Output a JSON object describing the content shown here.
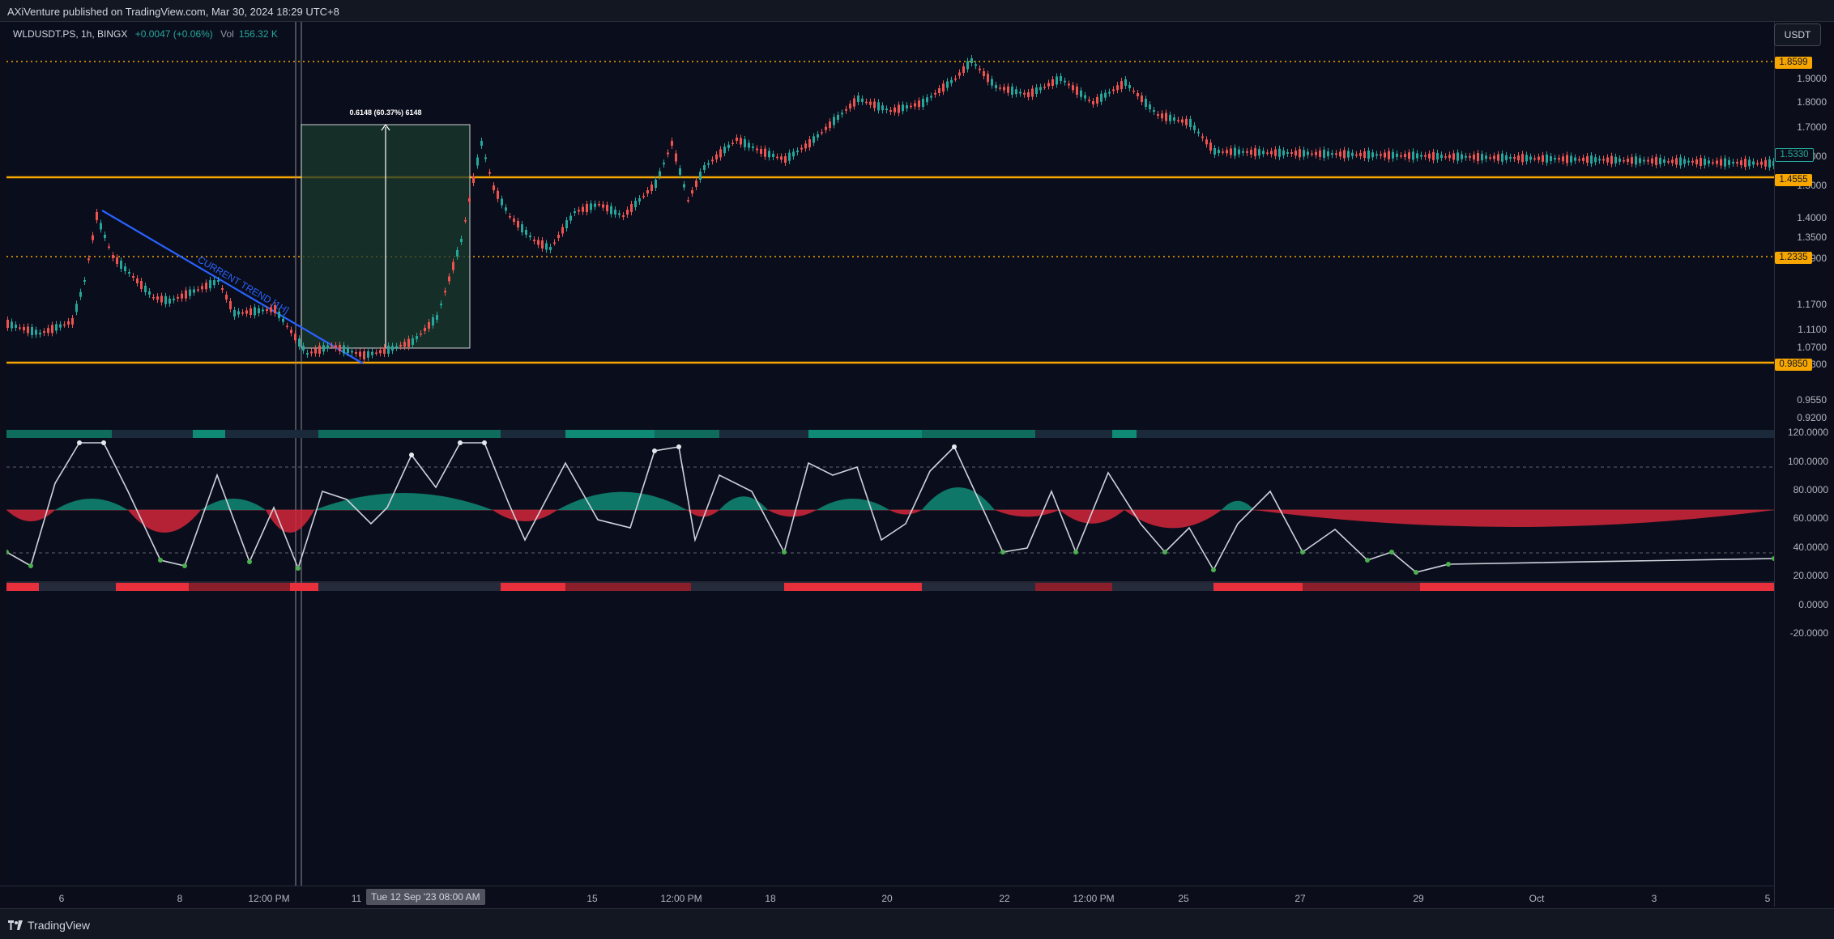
{
  "header": {
    "publisher_text": "AXiVenture published on TradingView.com, Mar 30, 2024 18:29 UTC+8"
  },
  "legend": {
    "symbol": "WLDUSDT.PS, 1h, BINGX",
    "change": "+0.0047 (+0.06%)",
    "vol_label": "Vol",
    "vol_value": "156.32 K"
  },
  "currency": "USDT",
  "price_scale": {
    "ticks": [
      "1.9000",
      "1.8000",
      "1.7000",
      "1.6000",
      "1.5000",
      "1.4000",
      "1.3500",
      "1.2900",
      "1.1700",
      "1.1100",
      "1.0700",
      "1.0300",
      "0.9550",
      "0.9200"
    ],
    "tags": [
      {
        "label": "1.8599",
        "color": "#f7a600"
      },
      {
        "label": "1.5330",
        "color": "#0b0e1a"
      },
      {
        "label": "1.4555",
        "color": "#f7a600"
      },
      {
        "label": "1.2335",
        "color": "#f7a600"
      },
      {
        "label": "0.9850",
        "color": "#f7a600"
      }
    ]
  },
  "indicator_scale": {
    "ticks": [
      "120.0000",
      "100.0000",
      "80.0000",
      "60.0000",
      "40.0000",
      "20.0000",
      "0.0000",
      "-20.0000"
    ]
  },
  "measure_label": "0.6148 (60.37%) 6148",
  "trend_label": "CURRENT TREND [1H]",
  "time_axis": {
    "labels": [
      "6",
      "8",
      "12:00 PM",
      "11",
      "15",
      "12:00 PM",
      "18",
      "20",
      "22",
      "12:00 PM",
      "25",
      "27",
      "29",
      "Oct",
      "3",
      "5"
    ],
    "crosshair": "Tue 12 Sep '23   08:00 AM"
  },
  "footer": {
    "brand": "TradingView"
  },
  "colors": {
    "up": "#26a69a",
    "down": "#ef5350",
    "level": "#f7a600",
    "trend": "#2962ff",
    "measure_box": "#1b3a2c"
  }
}
